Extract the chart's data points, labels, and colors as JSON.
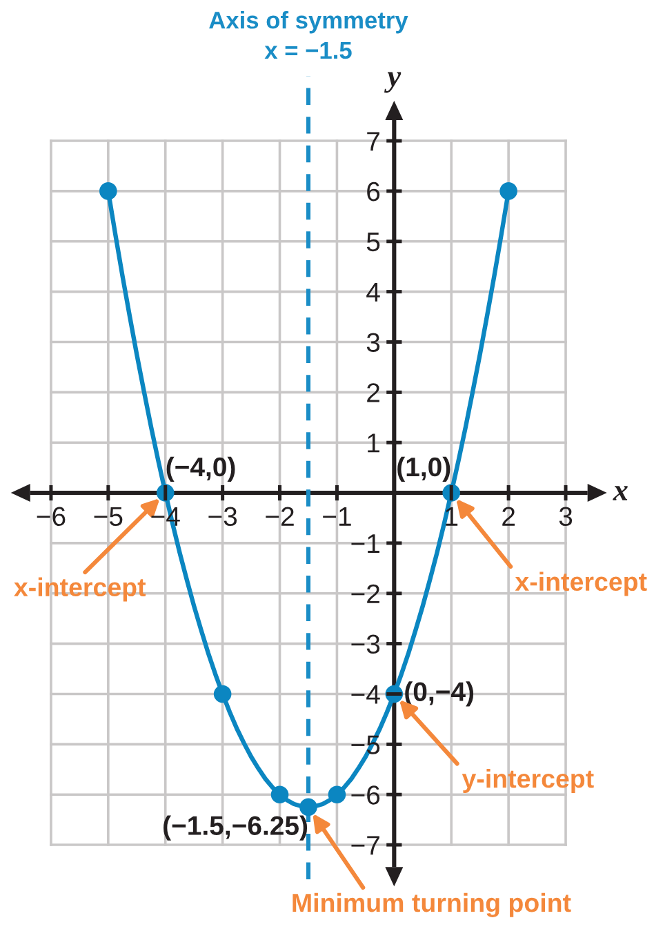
{
  "chart_data": {
    "type": "line",
    "xlabel": "x",
    "ylabel": "y",
    "series": [
      {
        "color": "#0b86c1",
        "x": [
          -5,
          -4.875,
          -4.75,
          -4.625,
          -4.5,
          -4.375,
          -4.25,
          -4.125,
          -4,
          -3.875,
          -3.75,
          -3.625,
          -3.5,
          -3.375,
          -3.25,
          -3.125,
          -3,
          -2.875,
          -2.75,
          -2.625,
          -2.5,
          -2.375,
          -2.25,
          -2.125,
          -2,
          -1.875,
          -1.75,
          -1.625,
          -1.5,
          -1.375,
          -1.25,
          -1.125,
          -1,
          -0.875,
          -0.75,
          -0.625,
          -0.5,
          -0.375,
          -0.25,
          -0.125,
          0,
          0.125,
          0.25,
          0.375,
          0.5,
          0.625,
          0.75,
          0.875,
          1,
          1.125,
          1.25,
          1.375,
          1.5,
          1.625,
          1.75,
          1.875,
          2
        ],
        "values": [
          6,
          5.14,
          4.31,
          3.52,
          2.75,
          2.02,
          1.31,
          0.64,
          0,
          -0.61,
          -1.19,
          -1.73,
          -2.25,
          -2.73,
          -3.19,
          -3.61,
          -4,
          -4.36,
          -4.69,
          -4.98,
          -5.25,
          -5.48,
          -5.69,
          -5.86,
          -6,
          -6.11,
          -6.19,
          -6.23,
          -6.25,
          -6.23,
          -6.19,
          -6.11,
          -6,
          -5.86,
          -5.69,
          -5.48,
          -5.25,
          -4.98,
          -4.69,
          -4.36,
          -4,
          -3.61,
          -3.19,
          -2.73,
          -2.25,
          -1.73,
          -1.19,
          -0.61,
          0,
          0.64,
          1.31,
          2.02,
          2.75,
          3.52,
          4.31,
          5.14,
          6
        ]
      },
      {
        "type": "scatter",
        "color": "#0b86c1",
        "marker": "circle",
        "x": [
          -5,
          -4,
          -3,
          -2,
          -1.5,
          -1,
          0,
          1,
          2
        ],
        "values": [
          6,
          0,
          -4,
          -6,
          -6.25,
          -6,
          -4,
          0,
          6
        ]
      }
    ],
    "xlim": [
      -6,
      3
    ],
    "ylim": [
      -7,
      7
    ],
    "xticks": [
      {
        "value": -6,
        "label": "−6"
      },
      {
        "value": -5,
        "label": "−5"
      },
      {
        "value": -4,
        "label": "−4"
      },
      {
        "value": -3,
        "label": "−3"
      },
      {
        "value": -2,
        "label": "−2"
      },
      {
        "value": -1,
        "label": "−1"
      },
      1,
      2,
      3
    ],
    "yticks": [
      {
        "value": -7,
        "label": "−7"
      },
      {
        "value": -6,
        "label": "−6"
      },
      {
        "value": -5,
        "label": "−5"
      },
      {
        "value": -4,
        "label": "−4"
      },
      {
        "value": -3,
        "label": "−3"
      },
      {
        "value": -2,
        "label": "−2"
      },
      {
        "value": -1,
        "label": "−1"
      },
      1,
      2,
      3,
      4,
      5,
      6,
      7
    ],
    "grid": true,
    "ref_lines": [
      {
        "axis": "x",
        "value": -1.5,
        "label": "Axis of symmetry\nx = −1.5",
        "color": "#1a8dc6",
        "line_style": "dashed"
      }
    ],
    "annotations": [
      {
        "text": "(−4,0)",
        "x": -4,
        "y": 0
      },
      {
        "text": "(1,0)",
        "x": 1,
        "y": 0
      },
      {
        "text": "(0,−4)",
        "x": 0,
        "y": -4
      },
      {
        "text": "(−1.5,−6.25)",
        "x": -1.5,
        "y": -6.25
      },
      {
        "text": "x-intercept",
        "x": -4,
        "y": 0
      },
      {
        "text": "x-intercept",
        "x": 1,
        "y": 0
      },
      {
        "text": "y-intercept",
        "x": 0,
        "y": -4
      },
      {
        "text": "Minimum turning point",
        "x": -1.5,
        "y": -6.25
      }
    ]
  }
}
